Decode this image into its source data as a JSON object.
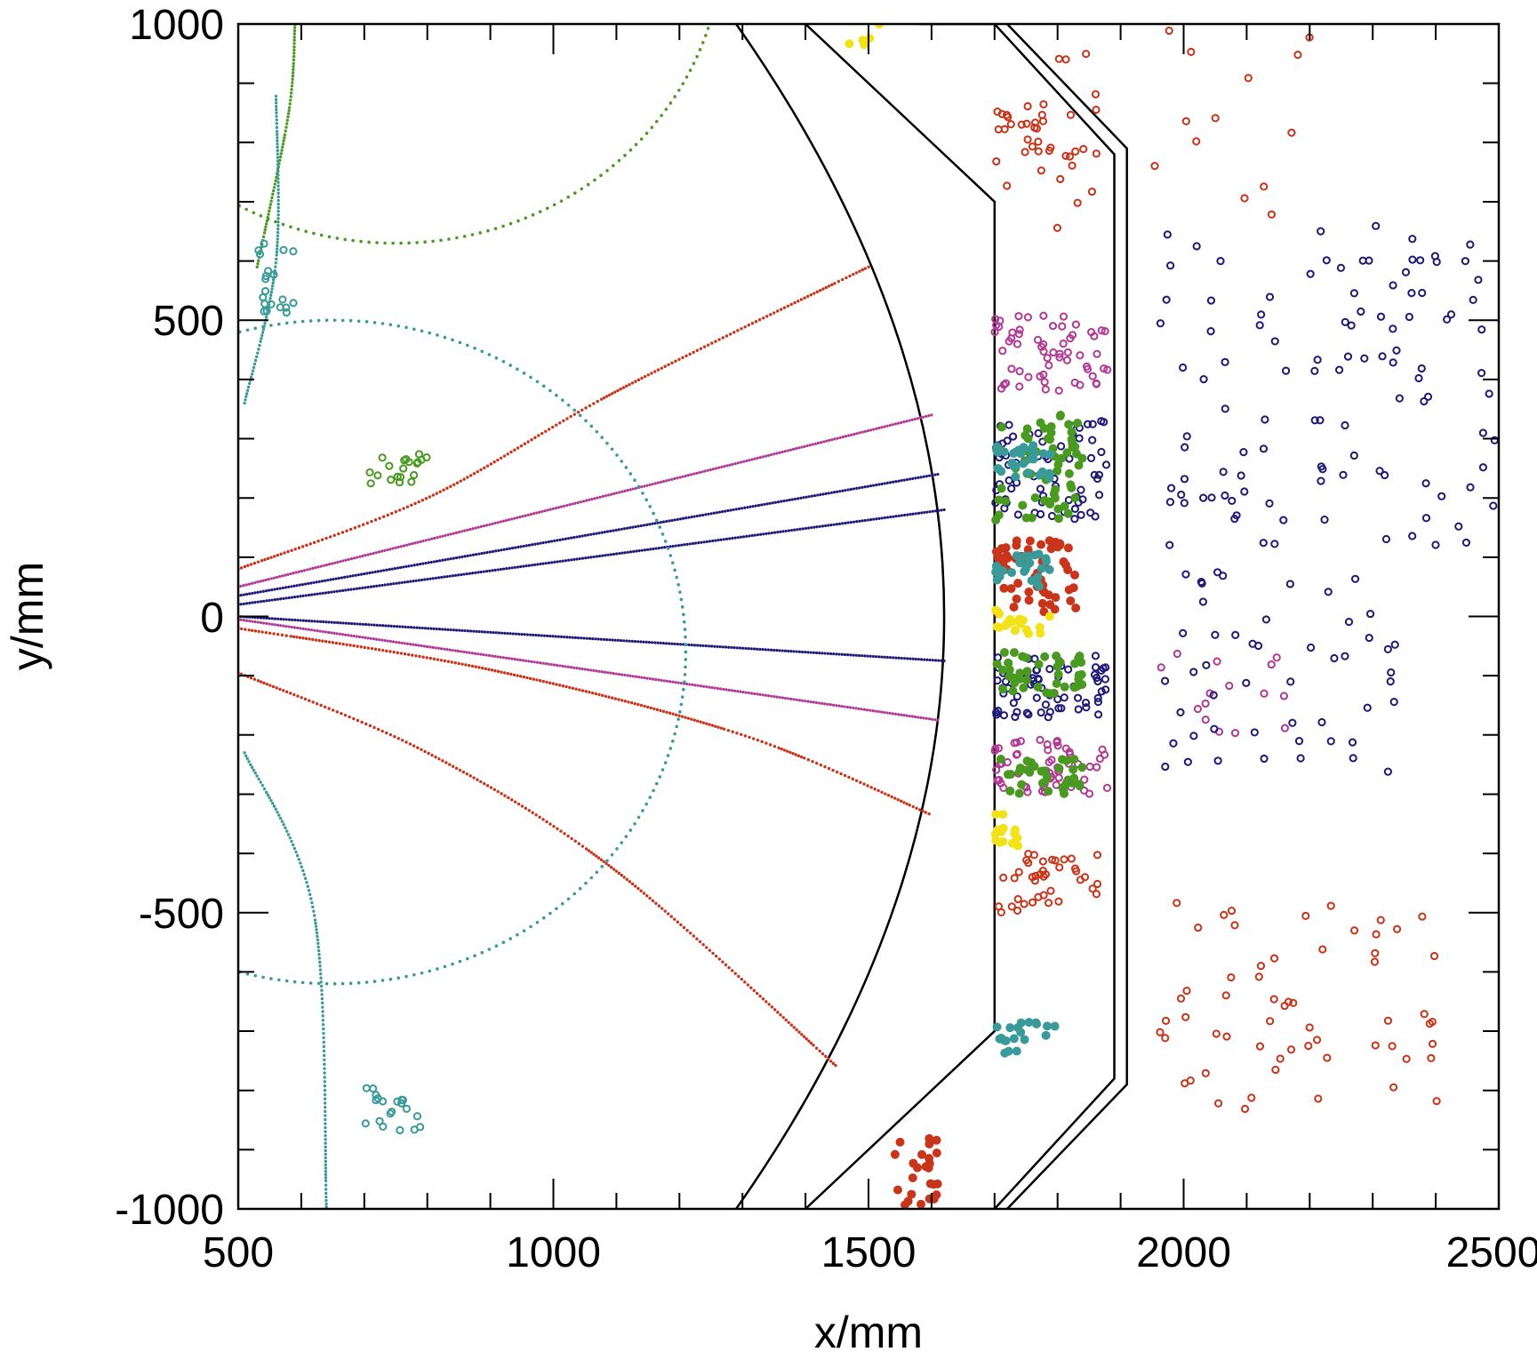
{
  "chart_data": {
    "type": "scatter",
    "xlabel": "x/mm",
    "ylabel": "y/mm",
    "xlim": [
      500,
      2500
    ],
    "ylim": [
      -1000,
      1000
    ],
    "x_ticks": [
      "500",
      "1000",
      "1500",
      "2000",
      "2500"
    ],
    "y_ticks": [
      "-1000",
      "-500",
      "0",
      "500",
      "1000"
    ],
    "colors": {
      "red": "#c8351a",
      "magenta": "#b03a95",
      "navy": "#1f1a78",
      "green": "#4a9a22",
      "teal": "#3a9a9a",
      "yellow": "#f2e21a",
      "outline": "#000000"
    },
    "detector_outlines": [
      {
        "name": "inner-arc",
        "shape": "arc",
        "x_vertex": 1620,
        "y_end": 1000,
        "x_end": 1290
      },
      {
        "name": "layer-1",
        "points": [
          [
            1400,
            1000
          ],
          [
            1700,
            700
          ],
          [
            1700,
            -700
          ],
          [
            1400,
            -1000
          ]
        ]
      },
      {
        "name": "layer-2",
        "points": [
          [
            1580,
            1000
          ],
          [
            1700,
            1000
          ],
          [
            1890,
            780
          ],
          [
            1890,
            -780
          ],
          [
            1700,
            -1000
          ],
          [
            1580,
            -1000
          ]
        ]
      },
      {
        "name": "layer-3",
        "points": [
          [
            1720,
            1000
          ],
          [
            1910,
            790
          ],
          [
            1910,
            -790
          ],
          [
            1720,
            -1000
          ]
        ]
      }
    ],
    "tracks": [
      {
        "color": "red",
        "type": "curve",
        "points": [
          [
            500,
            80
          ],
          [
            800,
            200
          ],
          [
            1100,
            380
          ],
          [
            1500,
            590
          ]
        ]
      },
      {
        "color": "magenta",
        "type": "line",
        "points": [
          [
            500,
            50
          ],
          [
            1600,
            340
          ]
        ]
      },
      {
        "color": "navy",
        "type": "line",
        "points": [
          [
            500,
            35
          ],
          [
            1610,
            240
          ]
        ]
      },
      {
        "color": "navy",
        "type": "line",
        "points": [
          [
            500,
            20
          ],
          [
            1620,
            180
          ]
        ]
      },
      {
        "color": "navy",
        "type": "line",
        "points": [
          [
            500,
            0
          ],
          [
            1620,
            -75
          ]
        ]
      },
      {
        "color": "magenta",
        "type": "line",
        "points": [
          [
            500,
            -5
          ],
          [
            1610,
            -175
          ]
        ]
      },
      {
        "color": "red",
        "type": "curve",
        "points": [
          [
            500,
            -20
          ],
          [
            900,
            -90
          ],
          [
            1300,
            -200
          ],
          [
            1600,
            -335
          ]
        ]
      },
      {
        "color": "red",
        "type": "curve",
        "points": [
          [
            500,
            -95
          ],
          [
            800,
            -230
          ],
          [
            1100,
            -430
          ],
          [
            1450,
            -760
          ]
        ]
      },
      {
        "color": "green",
        "type": "circle",
        "center": [
          750,
          1150
        ],
        "radius": 520,
        "from_deg": 170,
        "to_deg": 355
      },
      {
        "color": "green",
        "type": "arc",
        "points": [
          [
            530,
            590
          ],
          [
            580,
            850
          ],
          [
            590,
            1000
          ]
        ]
      },
      {
        "color": "teal",
        "type": "circle",
        "center": [
          650,
          -60
        ],
        "radius": 560,
        "from_deg": 0,
        "to_deg": 360
      },
      {
        "color": "teal",
        "type": "arc",
        "points": [
          [
            510,
            360
          ],
          [
            560,
            600
          ],
          [
            560,
            880
          ]
        ]
      },
      {
        "color": "teal",
        "type": "arc",
        "points": [
          [
            510,
            -230
          ],
          [
            620,
            -500
          ],
          [
            640,
            -1000
          ]
        ]
      }
    ],
    "hit_clusters": [
      {
        "color": "red",
        "marker": "open",
        "x_range": [
          1700,
          1830
        ],
        "y_range": [
          720,
          870
        ],
        "count": 30
      },
      {
        "color": "red",
        "marker": "filled",
        "x_range": [
          1700,
          1830
        ],
        "y_range": [
          0,
          130
        ],
        "count": 60
      },
      {
        "color": "red",
        "marker": "filled",
        "x_range": [
          1540,
          1610
        ],
        "y_range": [
          -1000,
          -880
        ],
        "count": 25
      },
      {
        "color": "red",
        "marker": "open",
        "x_range": [
          1700,
          1880
        ],
        "y_range": [
          -510,
          -400
        ],
        "count": 40
      },
      {
        "color": "red",
        "marker": "open",
        "x_range": [
          1960,
          2430
        ],
        "y_range": [
          -850,
          -480
        ],
        "count": 60
      },
      {
        "color": "red",
        "marker": "open",
        "x_range": [
          1750,
          2200
        ],
        "y_range": [
          650,
          990
        ],
        "count": 25
      },
      {
        "color": "magenta",
        "marker": "open",
        "x_range": [
          1700,
          1880
        ],
        "y_range": [
          380,
          510
        ],
        "count": 60
      },
      {
        "color": "magenta",
        "marker": "open",
        "x_range": [
          1700,
          1880
        ],
        "y_range": [
          -300,
          -200
        ],
        "count": 60
      },
      {
        "color": "magenta",
        "marker": "open",
        "x_range": [
          1960,
          2180
        ],
        "y_range": [
          -200,
          -60
        ],
        "count": 15
      },
      {
        "color": "navy",
        "marker": "open",
        "x_range": [
          1700,
          1880
        ],
        "y_range": [
          160,
          330
        ],
        "count": 70
      },
      {
        "color": "navy",
        "marker": "open",
        "x_range": [
          1700,
          1880
        ],
        "y_range": [
          -170,
          -60
        ],
        "count": 70
      },
      {
        "color": "navy",
        "marker": "open",
        "x_range": [
          1960,
          2500
        ],
        "y_range": [
          120,
          660
        ],
        "count": 110
      },
      {
        "color": "navy",
        "marker": "open",
        "x_range": [
          1960,
          2350
        ],
        "y_range": [
          -270,
          80
        ],
        "count": 50
      },
      {
        "color": "green",
        "marker": "filled",
        "x_range": [
          1700,
          1840
        ],
        "y_range": [
          160,
          340
        ],
        "count": 60
      },
      {
        "color": "green",
        "marker": "filled",
        "x_range": [
          1700,
          1840
        ],
        "y_range": [
          -130,
          -60
        ],
        "count": 40
      },
      {
        "color": "green",
        "marker": "filled",
        "x_range": [
          1700,
          1840
        ],
        "y_range": [
          -300,
          -240
        ],
        "count": 35
      },
      {
        "color": "green",
        "marker": "open",
        "x_range": [
          700,
          800
        ],
        "y_range": [
          220,
          280
        ],
        "count": 20
      },
      {
        "color": "teal",
        "marker": "filled",
        "x_range": [
          1700,
          1790
        ],
        "y_range": [
          230,
          290
        ],
        "count": 30
      },
      {
        "color": "teal",
        "marker": "filled",
        "x_range": [
          1700,
          1790
        ],
        "y_range": [
          50,
          110
        ],
        "count": 25
      },
      {
        "color": "teal",
        "marker": "filled",
        "x_range": [
          1700,
          1800
        ],
        "y_range": [
          -740,
          -680
        ],
        "count": 20
      },
      {
        "color": "teal",
        "marker": "open",
        "x_range": [
          520,
          590
        ],
        "y_range": [
          510,
          630
        ],
        "count": 20
      },
      {
        "color": "teal",
        "marker": "open",
        "x_range": [
          700,
          790
        ],
        "y_range": [
          -870,
          -790
        ],
        "count": 20
      },
      {
        "color": "yellow",
        "marker": "filled",
        "x_range": [
          1700,
          1790
        ],
        "y_range": [
          -30,
          20
        ],
        "count": 20
      },
      {
        "color": "yellow",
        "marker": "filled",
        "x_range": [
          1700,
          1760
        ],
        "y_range": [
          -390,
          -330
        ],
        "count": 15
      },
      {
        "color": "yellow",
        "marker": "filled",
        "x_range": [
          1460,
          1520
        ],
        "y_range": [
          960,
          1000
        ],
        "count": 5
      }
    ]
  }
}
